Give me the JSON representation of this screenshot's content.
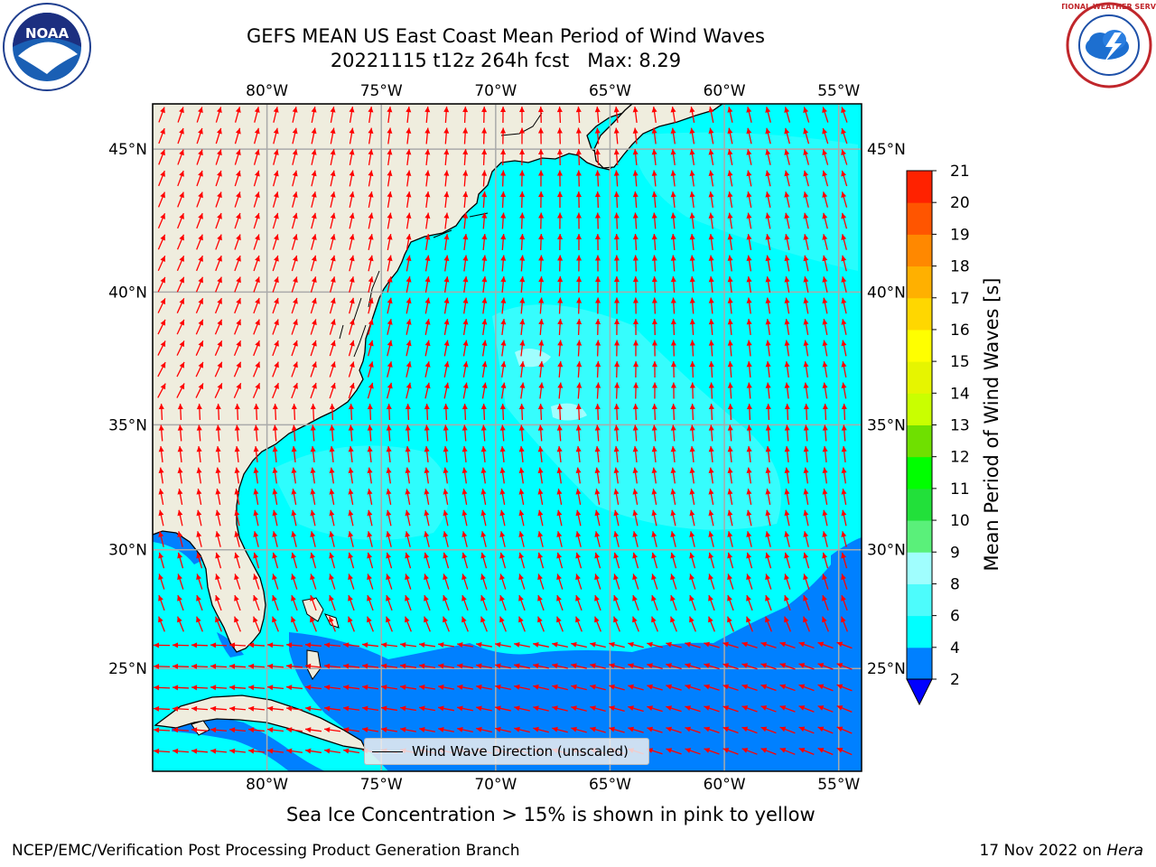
{
  "title": {
    "line1": "GEFS MEAN US East Coast Mean Period of Wind Waves",
    "line2": "20221115 t12z 264h fcst   Max: 8.29"
  },
  "map": {
    "extent_lon": [
      -85,
      -54
    ],
    "extent_lat": [
      20.5,
      46.5
    ],
    "lon_ticks": [
      "80°W",
      "75°W",
      "70°W",
      "65°W",
      "60°W",
      "55°W"
    ],
    "lon_tick_values": [
      -80,
      -75,
      -70,
      -65,
      -60,
      -55
    ],
    "lat_ticks": [
      "45°N",
      "40°N",
      "35°N",
      "30°N",
      "25°N"
    ],
    "lat_tick_values": [
      45,
      40,
      35,
      30,
      25
    ],
    "land_color": "#efedde",
    "ocean_color": "#00ffff",
    "low_period_color": "#0080ff",
    "arrow_color": "#ff0000"
  },
  "legend": {
    "label": "Wind Wave Direction (unscaled)"
  },
  "colorbar": {
    "label": "Mean Period of Wind Waves [s]",
    "ticks": [
      "2",
      "4",
      "6",
      "8",
      "9",
      "10",
      "11",
      "12",
      "13",
      "14",
      "15",
      "16",
      "17",
      "18",
      "19",
      "20",
      "21"
    ],
    "levels": [
      2,
      4,
      6,
      8,
      9,
      10,
      11,
      12,
      13,
      14,
      15,
      16,
      17,
      18,
      19,
      20,
      21
    ],
    "colors": [
      "#0080ff",
      "#00ffff",
      "#4dfcfc",
      "#a0fefe",
      "#5af07a",
      "#22e03a",
      "#00ff00",
      "#6fe000",
      "#c9ff00",
      "#e6f500",
      "#ffff00",
      "#ffd700",
      "#ffb000",
      "#ff8800",
      "#ff5500",
      "#ff2200"
    ],
    "under_color": "#0000ff"
  },
  "caption": "Sea Ice Concentration > 15% is shown in pink to yellow",
  "footer": {
    "left": "NCEP/EMC/Verification Post Processing Product Generation Branch",
    "right_date": "17 Nov 2022 on ",
    "right_host": "Hera"
  },
  "logos": {
    "left": "NOAA",
    "right": "NATIONAL WEATHER SERVICE"
  }
}
